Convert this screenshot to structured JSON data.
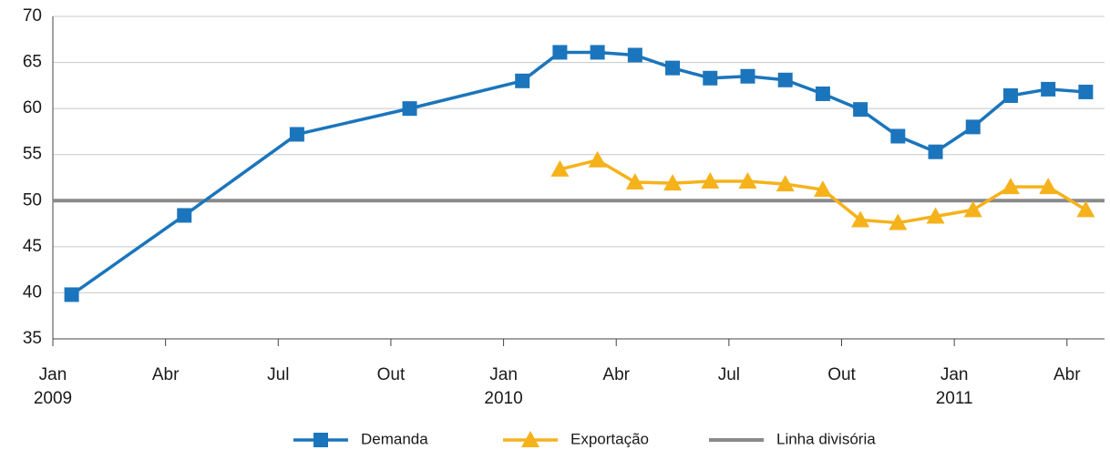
{
  "chart_data": {
    "type": "line",
    "ylim": [
      35,
      70
    ],
    "yticks": [
      35,
      40,
      45,
      50,
      55,
      60,
      65,
      70
    ],
    "grid": true,
    "xlim": [
      "2009-01",
      "2011-05"
    ],
    "xticks": [
      {
        "value": "2009-01",
        "label": "Jan"
      },
      {
        "value": "2009-04",
        "label": "Abr"
      },
      {
        "value": "2009-07",
        "label": "Jul"
      },
      {
        "value": "2009-10",
        "label": "Out"
      },
      {
        "value": "2010-01",
        "label": "Jan"
      },
      {
        "value": "2010-04",
        "label": "Abr"
      },
      {
        "value": "2010-07",
        "label": "Jul"
      },
      {
        "value": "2010-10",
        "label": "Out"
      },
      {
        "value": "2011-01",
        "label": "Jan"
      },
      {
        "value": "2011-04",
        "label": "Abr"
      }
    ],
    "year_labels": [
      {
        "value": "2009-01",
        "label": "2009"
      },
      {
        "value": "2010-01",
        "label": "2010"
      },
      {
        "value": "2011-01",
        "label": "2011"
      }
    ],
    "legend": "bottom",
    "series": [
      {
        "name": "Demanda",
        "color": "#1b75bc",
        "marker": "square",
        "x": [
          "2009-01",
          "2009-04",
          "2009-07",
          "2009-10",
          "2010-01",
          "2010-02",
          "2010-03",
          "2010-04",
          "2010-05",
          "2010-06",
          "2010-07",
          "2010-08",
          "2010-09",
          "2010-10",
          "2010-11",
          "2010-12",
          "2011-01",
          "2011-02",
          "2011-03",
          "2011-04"
        ],
        "values": [
          39.8,
          48.4,
          57.2,
          60.0,
          63.0,
          66.1,
          66.1,
          65.8,
          64.4,
          63.3,
          63.5,
          63.1,
          61.6,
          59.9,
          57.0,
          55.3,
          58.0,
          61.4,
          62.1,
          61.8
        ]
      },
      {
        "name": "Exportação",
        "color": "#f6b21b",
        "marker": "triangle",
        "x": [
          "2010-02",
          "2010-03",
          "2010-04",
          "2010-05",
          "2010-06",
          "2010-07",
          "2010-08",
          "2010-09",
          "2010-10",
          "2010-11",
          "2010-12",
          "2011-01",
          "2011-02",
          "2011-03",
          "2011-04"
        ],
        "values": [
          53.4,
          54.4,
          52.0,
          51.9,
          52.1,
          52.1,
          51.8,
          51.2,
          47.9,
          47.6,
          48.3,
          49.0,
          51.5,
          51.5,
          49.0
        ]
      }
    ],
    "reference_lines": [
      {
        "name": "Linha divisória",
        "value": 50,
        "color": "#8a8a8a"
      }
    ]
  }
}
